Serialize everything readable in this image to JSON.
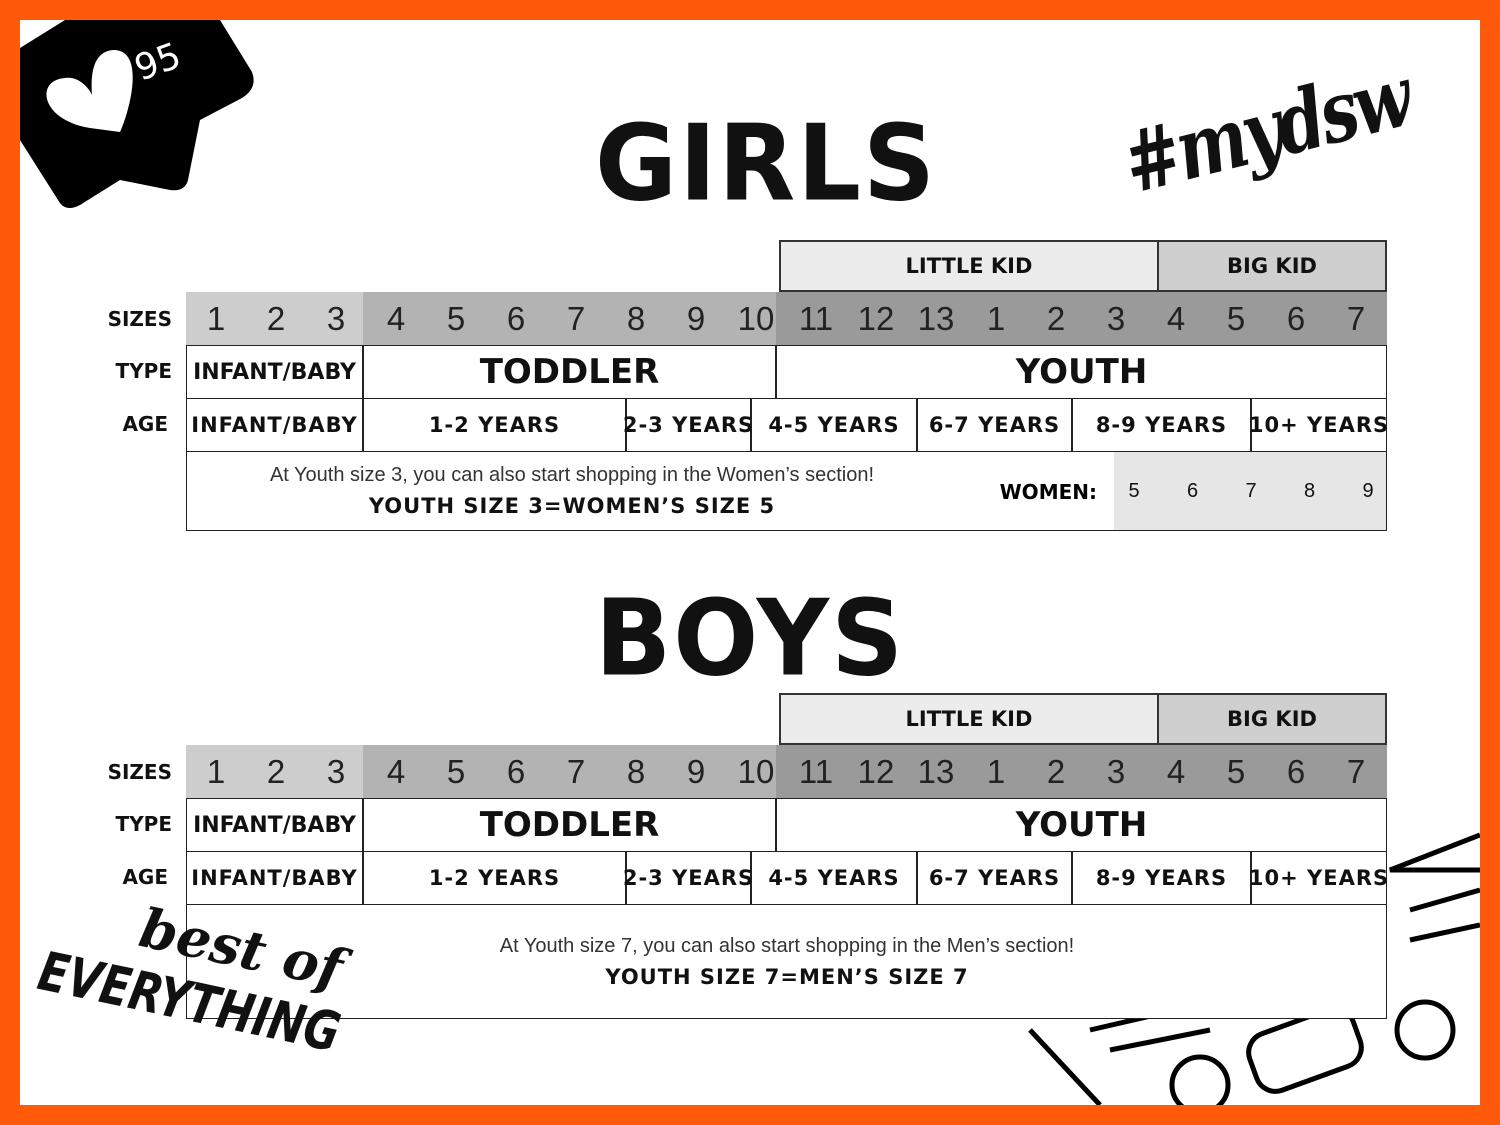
{
  "badge": {
    "likes": "95",
    "icon": "heart-icon"
  },
  "hashtag": "#mydsw",
  "logo_text": {
    "line1": "best of",
    "line2": "EVERYTHING"
  },
  "colors": {
    "border": "#ff5a0a",
    "infant": "#cdcdcd",
    "toddler": "#b3b3b3",
    "youth": "#9a9a9a",
    "little_kid": "#ececec",
    "big_kid": "#cfcfcf",
    "women_cells": "#e6e6e6"
  },
  "row_labels": {
    "sizes": "SIZES",
    "type": "TYPE",
    "age": "AGE"
  },
  "girls": {
    "title": "GIRLS",
    "groups": [
      "LITTLE KID",
      "BIG KID"
    ],
    "sizes": {
      "infant": [
        "1",
        "2",
        "3"
      ],
      "toddler": [
        "4",
        "5",
        "6",
        "7",
        "8",
        "9",
        "10"
      ],
      "youth": [
        "11",
        "12",
        "13",
        "1",
        "2",
        "3",
        "4",
        "5",
        "6",
        "7"
      ]
    },
    "types": [
      "INFANT/BABY",
      "TODDLER",
      "YOUTH"
    ],
    "ages": [
      "INFANT/BABY",
      "1-2 YEARS",
      "2-3 YEARS",
      "4-5 YEARS",
      "6-7 YEARS",
      "8-9 YEARS",
      "10+ YEARS"
    ],
    "note": {
      "line1": "At Youth size 3, you can also start shopping in the Women’s section!",
      "line2": "YOUTH SIZE 3=WOMEN’S SIZE 5",
      "women_label": "WOMEN:",
      "women_sizes": [
        "5",
        "6",
        "7",
        "8",
        "9"
      ]
    }
  },
  "boys": {
    "title": "BOYS",
    "groups": [
      "LITTLE KID",
      "BIG KID"
    ],
    "sizes": {
      "infant": [
        "1",
        "2",
        "3"
      ],
      "toddler": [
        "4",
        "5",
        "6",
        "7",
        "8",
        "9",
        "10"
      ],
      "youth": [
        "11",
        "12",
        "13",
        "1",
        "2",
        "3",
        "4",
        "5",
        "6",
        "7"
      ]
    },
    "types": [
      "INFANT/BABY",
      "TODDLER",
      "YOUTH"
    ],
    "ages": [
      "INFANT/BABY",
      "1-2 YEARS",
      "2-3 YEARS",
      "4-5 YEARS",
      "6-7 YEARS",
      "8-9 YEARS",
      "10+ YEARS"
    ],
    "note": {
      "line1": "At Youth size 7, you can also start shopping in the Men’s section!",
      "line2": "YOUTH SIZE 7=MEN’S SIZE 7"
    }
  }
}
